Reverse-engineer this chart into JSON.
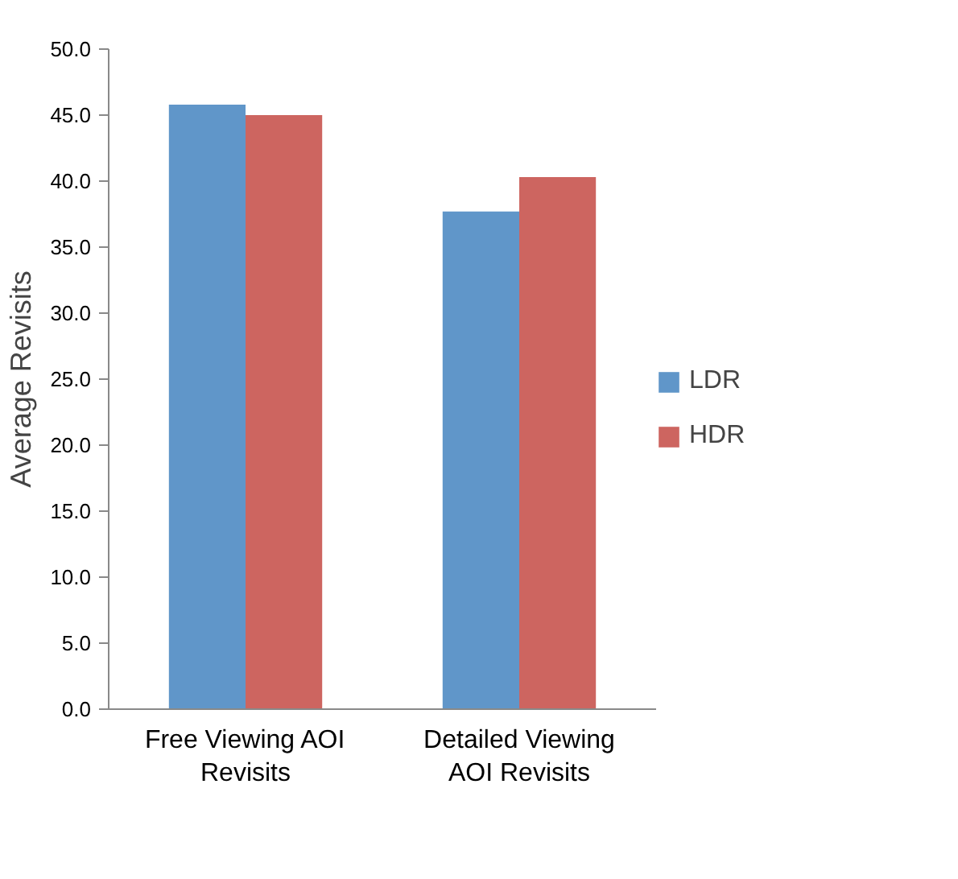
{
  "chart_data": {
    "type": "bar",
    "ylabel": "Average Revisits",
    "categories": [
      "Free Viewing AOI Revisits",
      "Detailed Viewing AOI Revisits"
    ],
    "series": [
      {
        "name": "LDR",
        "color": "#6096c9",
        "values": [
          45.8,
          37.7
        ]
      },
      {
        "name": "HDR",
        "color": "#cd6560",
        "values": [
          45.0,
          40.3
        ]
      }
    ],
    "ylim": [
      0,
      50
    ],
    "yticks": [
      {
        "value": 0,
        "label": "0.0"
      },
      {
        "value": 5,
        "label": "5.0"
      },
      {
        "value": 10,
        "label": "10.0"
      },
      {
        "value": 15,
        "label": "15.0"
      },
      {
        "value": 20,
        "label": "20.0"
      },
      {
        "value": 25,
        "label": "25.0"
      },
      {
        "value": 30,
        "label": "30.0"
      },
      {
        "value": 35,
        "label": "35.0"
      },
      {
        "value": 40,
        "label": "40.0"
      },
      {
        "value": 45,
        "label": "45.0"
      },
      {
        "value": 50,
        "label": "50.0"
      }
    ],
    "grid": false,
    "legend": "right"
  }
}
